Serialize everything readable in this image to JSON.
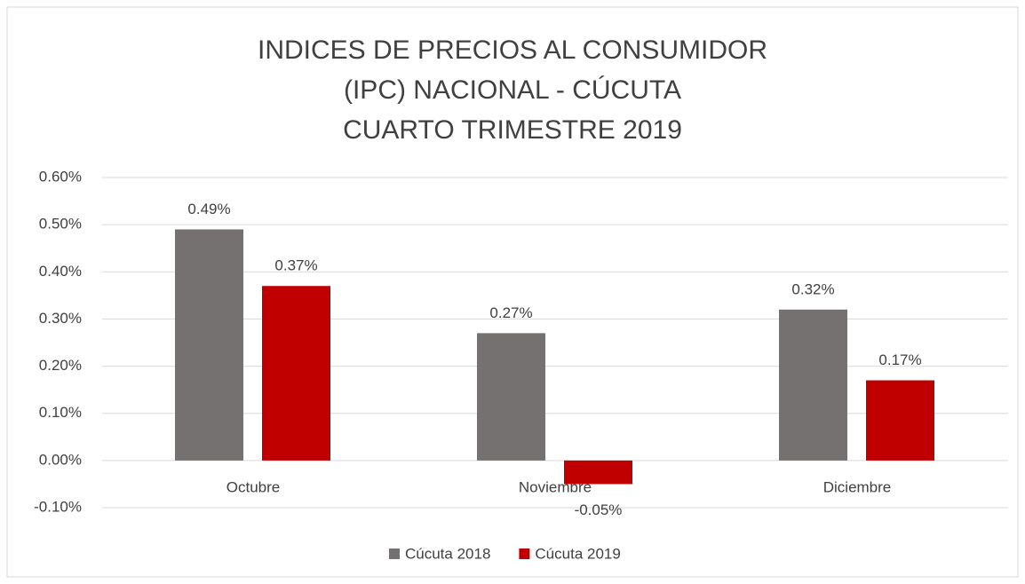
{
  "chart_data": {
    "type": "bar",
    "title": [
      "INDICES DE PRECIOS AL CONSUMIDOR",
      "(IPC) NACIONAL - CÚCUTA",
      "CUARTO TRIMESTRE 2019"
    ],
    "categories": [
      "Octubre",
      "Noviembre",
      "Diciembre"
    ],
    "series": [
      {
        "name": "Cúcuta 2018",
        "color": "#767171",
        "values": [
          0.49,
          0.27,
          0.32
        ],
        "value_labels": [
          "0.49%",
          "0.27%",
          "0.32%"
        ]
      },
      {
        "name": "Cúcuta 2019",
        "color": "#c00000",
        "values": [
          0.37,
          -0.05,
          0.17
        ],
        "value_labels": [
          "0.37%",
          "-0.05%",
          "0.17%"
        ]
      }
    ],
    "ylim": [
      -0.1,
      0.6
    ],
    "yticks": [
      {
        "value": -0.1,
        "label": "-0.10%"
      },
      {
        "value": 0,
        "label": "0.00%"
      },
      {
        "value": 0.1,
        "label": "0.10%"
      },
      {
        "value": 0.2,
        "label": "0.20%"
      },
      {
        "value": 0.3,
        "label": "0.30%"
      },
      {
        "value": 0.4,
        "label": "0.40%"
      },
      {
        "value": 0.5,
        "label": "0.50%"
      },
      {
        "value": 0.6,
        "label": "0.60%"
      }
    ],
    "grid": true,
    "legend": "bottom"
  }
}
